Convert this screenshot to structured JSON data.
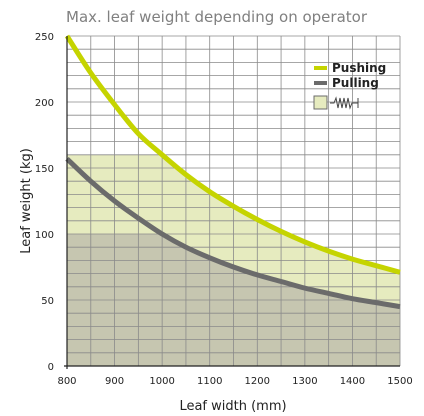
{
  "chart_data": {
    "type": "line",
    "title": "Max. leaf weight depending on operator",
    "xlabel": "Leaf width (mm)",
    "ylabel": "Leaf weight (kg)",
    "xlim": [
      800,
      1500
    ],
    "ylim": [
      0,
      250
    ],
    "x_ticks": [
      800,
      900,
      1000,
      1100,
      1200,
      1300,
      1400,
      1500
    ],
    "y_ticks": [
      0,
      50,
      100,
      150,
      200,
      250
    ],
    "grid": true,
    "legend_position": "top-right",
    "x": [
      800,
      850,
      900,
      950,
      1000,
      1050,
      1100,
      1150,
      1200,
      1250,
      1300,
      1350,
      1400,
      1450,
      1500
    ],
    "series": [
      {
        "name": "Pushing",
        "color": "#c5d400",
        "values": [
          250,
          222,
          198,
          176,
          160,
          145,
          132,
          121,
          111,
          102,
          94,
          87,
          81,
          76,
          71
        ]
      },
      {
        "name": "Pulling",
        "color": "#6b6b6b",
        "values": [
          157,
          140,
          125,
          112,
          100,
          90,
          82,
          75,
          69,
          64,
          59,
          55,
          51,
          48,
          45
        ]
      }
    ],
    "shaded_regions": [
      {
        "color": "#e6ebbf",
        "y_max": 160,
        "x_start": 800,
        "x_end": 1000,
        "follows_series": "Pushing"
      },
      {
        "color": "#c6c6b0",
        "y_max": 100,
        "x_start": 800,
        "x_end": 1000,
        "follows_series": "Pulling"
      }
    ],
    "legend_icon": "spring-icon"
  }
}
